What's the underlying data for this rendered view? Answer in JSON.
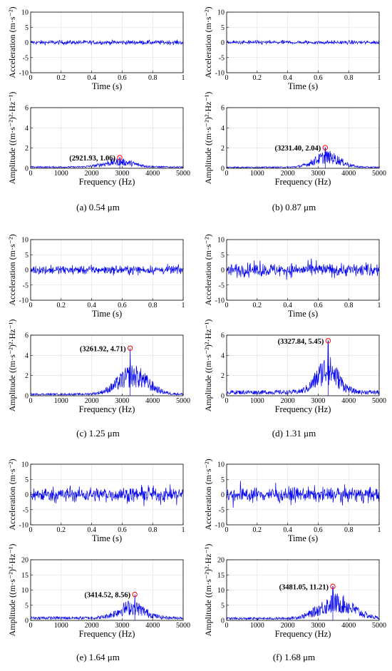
{
  "colors": {
    "signal": "#0000ee",
    "marker": "#ff0000",
    "grid": "#dddddd",
    "axis": "#000000"
  },
  "captions": [
    "(a) 0.54 μm",
    "(b) 0.87 μm",
    "(c) 1.25 μm",
    "(d) 1.31 μm",
    "(e) 1.64 μm",
    "(f) 1.68 μm"
  ],
  "chart_data": [
    {
      "type": "line",
      "panel": "a",
      "xlabel": "Time (s)",
      "ylabel": "Acceleration (m·s⁻²)",
      "xlim": [
        0,
        1
      ],
      "ylim": [
        -10,
        10
      ],
      "xticks": [
        "0",
        "0.2",
        "0.4",
        "0.6",
        "0.8",
        "1"
      ],
      "yticks": [
        "10",
        "5",
        "0",
        "-5",
        "-10"
      ],
      "noise_amplitude": 0.8,
      "grid": true
    },
    {
      "type": "line",
      "panel": "a",
      "xlabel": "Frequency (Hz)",
      "ylabel": "Amplitude ((m·s⁻²)²·Hz⁻¹)",
      "xlim": [
        0,
        5000
      ],
      "ylim": [
        0,
        6
      ],
      "xticks": [
        "0",
        "1000",
        "2000",
        "3000",
        "4000",
        "5000"
      ],
      "yticks": [
        "6",
        "4",
        "2",
        "0"
      ],
      "peak": {
        "x": 2921.93,
        "y": 1.06,
        "label": "(2921.93,  1.06)"
      },
      "profile": {
        "center": 2900,
        "width": 700,
        "height": 0.5,
        "base": 0.12
      },
      "grid": true
    },
    {
      "type": "line",
      "panel": "b",
      "xlabel": "Time (s)",
      "ylabel": "Acceleration (m·s⁻²)",
      "xlim": [
        0,
        1
      ],
      "ylim": [
        -10,
        10
      ],
      "xticks": [
        "0",
        "0.2",
        "0.4",
        "0.6",
        "0.8",
        "1"
      ],
      "yticks": [
        "10",
        "5",
        "0",
        "-5",
        "-10"
      ],
      "noise_amplitude": 0.7,
      "grid": true
    },
    {
      "type": "line",
      "panel": "b",
      "xlabel": "Frequency (Hz)",
      "ylabel": "Amplitude ((m·s⁻²)²·Hz⁻¹)",
      "xlim": [
        0,
        5000
      ],
      "ylim": [
        0,
        6
      ],
      "xticks": [
        "0",
        "1000",
        "2000",
        "3000",
        "4000",
        "5000"
      ],
      "yticks": [
        "6",
        "4",
        "2",
        "0"
      ],
      "peak": {
        "x": 3231.4,
        "y": 2.04,
        "label": "(3231.40,  2.04)"
      },
      "profile": {
        "center": 3300,
        "width": 600,
        "height": 1.0,
        "base": 0.1
      },
      "grid": true
    },
    {
      "type": "line",
      "panel": "c",
      "xlabel": "Time (s)",
      "ylabel": "Acceleration (m·s⁻²)",
      "xlim": [
        0,
        1
      ],
      "ylim": [
        -10,
        10
      ],
      "xticks": [
        "0",
        "0.2",
        "0.4",
        "0.6",
        "0.8",
        "1"
      ],
      "yticks": [
        "10",
        "5",
        "0",
        "-5",
        "-10"
      ],
      "noise_amplitude": 1.6,
      "grid": true
    },
    {
      "type": "line",
      "panel": "c",
      "xlabel": "Frequency (Hz)",
      "ylabel": "Amplitude ((m·s⁻²)²·Hz⁻¹)",
      "xlim": [
        0,
        5000
      ],
      "ylim": [
        0,
        6
      ],
      "xticks": [
        "0",
        "1000",
        "2000",
        "3000",
        "4000",
        "5000"
      ],
      "yticks": [
        "6",
        "4",
        "2",
        "0"
      ],
      "peak": {
        "x": 3261.92,
        "y": 4.71,
        "label": "(3261.92,  4.71)"
      },
      "profile": {
        "center": 3350,
        "width": 700,
        "height": 1.8,
        "base": 0.15
      },
      "grid": true
    },
    {
      "type": "line",
      "panel": "d",
      "xlabel": "Time (s)",
      "ylabel": "Acceleration (m·s⁻²)",
      "xlim": [
        0,
        1
      ],
      "ylim": [
        -10,
        10
      ],
      "xticks": [
        "0",
        "0.2",
        "0.4",
        "0.6",
        "0.8",
        "1"
      ],
      "yticks": [
        "10",
        "5",
        "0",
        "-5",
        "-10"
      ],
      "noise_amplitude": 2.4,
      "grid": true
    },
    {
      "type": "line",
      "panel": "d",
      "xlabel": "Frequency (Hz)",
      "ylabel": "Amplitude ((m·s⁻²)²·Hz⁻¹)",
      "xlim": [
        0,
        5000
      ],
      "ylim": [
        0,
        6
      ],
      "xticks": [
        "0",
        "1000",
        "2000",
        "3000",
        "4000",
        "5000"
      ],
      "yticks": [
        "6",
        "4",
        "2",
        "0"
      ],
      "peak": {
        "x": 3327.84,
        "y": 5.45,
        "label": "(3327.84,  5.45)"
      },
      "profile": {
        "center": 3300,
        "width": 500,
        "height": 2.2,
        "base": 0.35
      },
      "grid": true
    },
    {
      "type": "line",
      "panel": "e",
      "xlabel": "Time (s)",
      "ylabel": "Acceleration (m·s⁻²)",
      "xlim": [
        0,
        1
      ],
      "ylim": [
        -10,
        10
      ],
      "xticks": [
        "0",
        "0.2",
        "0.4",
        "0.6",
        "0.8",
        "1"
      ],
      "yticks": [
        "10",
        "5",
        "0",
        "-5",
        "-10"
      ],
      "noise_amplitude": 2.6,
      "grid": true
    },
    {
      "type": "line",
      "panel": "e",
      "xlabel": "Frequency (Hz)",
      "ylabel": "Amplitude ((m·s⁻²)²·Hz⁻¹)",
      "xlim": [
        0,
        5000
      ],
      "ylim": [
        0,
        20
      ],
      "xticks": [
        "0",
        "1000",
        "2000",
        "3000",
        "4000",
        "5000"
      ],
      "yticks": [
        "20",
        "15",
        "10",
        "5",
        "0"
      ],
      "peak": {
        "x": 3414.52,
        "y": 8.56,
        "label": "(3414.52,  8.56)"
      },
      "profile": {
        "center": 3300,
        "width": 600,
        "height": 3.5,
        "base": 0.8
      },
      "grid": true
    },
    {
      "type": "line",
      "panel": "f",
      "xlabel": "Time (s)",
      "ylabel": "Acceleration (m·s⁻²)",
      "xlim": [
        0,
        1
      ],
      "ylim": [
        -10,
        10
      ],
      "xticks": [
        "0",
        "0.2",
        "0.4",
        "0.6",
        "0.8",
        "1"
      ],
      "yticks": [
        "10",
        "5",
        "0",
        "-5",
        "-10"
      ],
      "noise_amplitude": 2.6,
      "grid": true
    },
    {
      "type": "line",
      "panel": "f",
      "xlabel": "Frequency (Hz)",
      "ylabel": "Amplitude ((m·s⁻²)²·Hz⁻¹)",
      "xlim": [
        0,
        5000
      ],
      "ylim": [
        0,
        20
      ],
      "xticks": [
        "0",
        "1000",
        "2000",
        "3000",
        "4000",
        "5000"
      ],
      "yticks": [
        "20",
        "15",
        "10",
        "5",
        "0"
      ],
      "peak": {
        "x": 3481.05,
        "y": 11.21,
        "label": "(3481.05, 11.21)"
      },
      "profile": {
        "center": 3600,
        "width": 800,
        "height": 5.0,
        "base": 0.6
      },
      "grid": true
    }
  ]
}
